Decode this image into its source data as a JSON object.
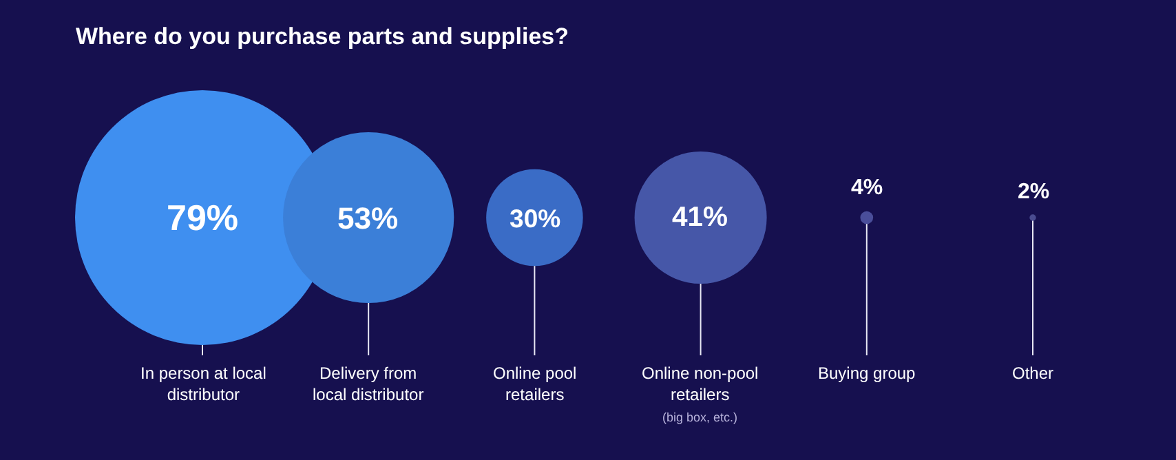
{
  "chart_data": {
    "type": "other",
    "title": "Where do you purchase parts and supplies?",
    "categories": [
      "In person at local\ndistributor",
      "Delivery from\nlocal distributor",
      "Online pool\nretailers",
      "Online non-pool\nretailers",
      "Buying group",
      "Other"
    ],
    "values": [
      79,
      53,
      30,
      41,
      4,
      2
    ],
    "value_labels": [
      "79%",
      "53%",
      "30%",
      "41%",
      "4%",
      "2%"
    ],
    "colors": [
      "#3f8ff0",
      "#3b7fd8",
      "#3a6cc6",
      "#4657a8",
      "#4a4e9a",
      "#4a4c90"
    ],
    "annotations": [
      {
        "text": "(big box, etc.)",
        "x": "Online non-pool\nretailers"
      }
    ]
  }
}
